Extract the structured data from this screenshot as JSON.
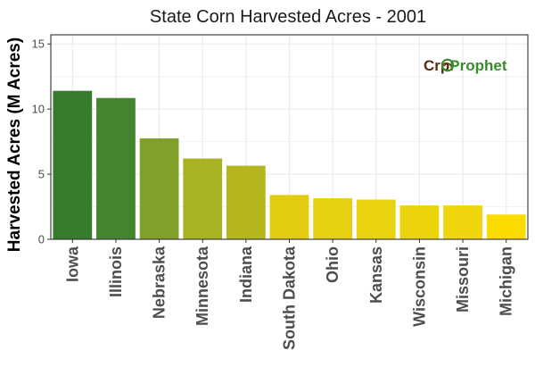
{
  "chart_data": {
    "type": "bar",
    "title": "State Corn Harvested Acres - 2001",
    "xlabel": "",
    "ylabel": "Harvested Acres (M Acres)",
    "ylim": [
      0,
      15.7
    ],
    "yticks": [
      0,
      5,
      10,
      15
    ],
    "grid": true,
    "categories": [
      "Iowa",
      "Illinois",
      "Nebraska",
      "Minnesota",
      "Indiana",
      "South Dakota",
      "Ohio",
      "Kansas",
      "Wisconsin",
      "Missouri",
      "Michigan"
    ],
    "values": [
      11.4,
      10.85,
      7.75,
      6.2,
      5.65,
      3.4,
      3.15,
      3.05,
      2.6,
      2.6,
      1.9
    ],
    "bar_colors": [
      "#377c2c",
      "#448630",
      "#81a02a",
      "#a9b223",
      "#b5b61e",
      "#e1cc12",
      "#e5d111",
      "#e9d30f",
      "#ecd40d",
      "#efd50b",
      "#fcdb00"
    ]
  },
  "logo": {
    "text_part1": "Cr",
    "text_part2": "p",
    "text_part3": "Prophet",
    "color_dark": "#5a2d0c",
    "color_green": "#3b8a2e"
  }
}
